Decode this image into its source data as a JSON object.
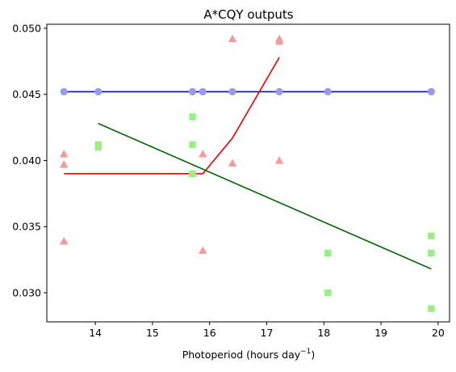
{
  "chart_data": {
    "type": "scatter",
    "title": "A*CQY outputs",
    "xlabel": "Photoperiod (hours day",
    "xlabel_sup": "−1",
    "xlabel_end": ")",
    "ylabel": "",
    "xlim": [
      13.15,
      20.2
    ],
    "ylim": [
      0.0278,
      0.0503
    ],
    "xticks": [
      14,
      15,
      16,
      17,
      18,
      19,
      20
    ],
    "xtick_labels": [
      "14",
      "15",
      "16",
      "17",
      "18",
      "19",
      "20"
    ],
    "yticks": [
      0.03,
      0.035,
      0.04,
      0.045,
      0.05
    ],
    "ytick_labels": [
      "0.030",
      "0.035",
      "0.040",
      "0.045",
      "0.050"
    ],
    "grid": false,
    "series": [
      {
        "marker": "circle",
        "color": "#9999ee",
        "points": [
          [
            13.45,
            0.0452
          ],
          [
            14.05,
            0.0452
          ],
          [
            15.7,
            0.0452
          ],
          [
            15.88,
            0.0452
          ],
          [
            16.4,
            0.0452
          ],
          [
            17.22,
            0.0452
          ],
          [
            18.07,
            0.0452
          ],
          [
            19.88,
            0.0452
          ]
        ]
      },
      {
        "marker": "triangle",
        "color": "#f49a9a",
        "points": [
          [
            13.45,
            0.0405
          ],
          [
            13.45,
            0.0397
          ],
          [
            13.45,
            0.0339
          ],
          [
            15.7,
            0.039
          ],
          [
            15.88,
            0.0405
          ],
          [
            15.88,
            0.0332
          ],
          [
            16.4,
            0.0492
          ],
          [
            16.4,
            0.0398
          ],
          [
            17.22,
            0.0492
          ],
          [
            17.22,
            0.049
          ],
          [
            17.22,
            0.04
          ]
        ]
      },
      {
        "marker": "square",
        "color": "#99ee88",
        "points": [
          [
            14.05,
            0.0412
          ],
          [
            14.05,
            0.041
          ],
          [
            15.7,
            0.0433
          ],
          [
            15.7,
            0.0412
          ],
          [
            15.7,
            0.039
          ],
          [
            18.07,
            0.033
          ],
          [
            18.07,
            0.03
          ],
          [
            19.88,
            0.0343
          ],
          [
            19.88,
            0.033
          ],
          [
            19.88,
            0.0288
          ]
        ]
      }
    ],
    "lines": [
      {
        "color": "#0000dd",
        "points": [
          [
            13.45,
            0.0452
          ],
          [
            19.88,
            0.0452
          ]
        ]
      },
      {
        "color": "#ee0000",
        "points": [
          [
            13.45,
            0.039
          ],
          [
            15.88,
            0.039
          ],
          [
            16.4,
            0.0417
          ],
          [
            17.22,
            0.0478
          ]
        ]
      },
      {
        "color": "#006600",
        "points": [
          [
            14.05,
            0.0428
          ],
          [
            19.88,
            0.0318
          ]
        ]
      }
    ]
  }
}
